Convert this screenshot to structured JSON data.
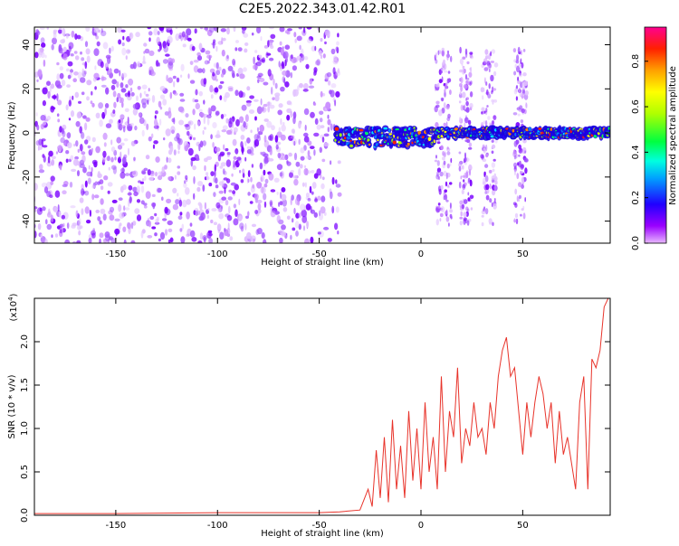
{
  "title": "C2E5.2022.343.01.42.R01",
  "chart_data": [
    {
      "type": "heatmap",
      "xlabel": "Height of straight line (km)",
      "ylabel": "Frequency (Hz)",
      "xlim": [
        -190,
        93
      ],
      "ylim": [
        -50,
        48
      ],
      "x_ticks": [
        -150,
        -100,
        -50,
        0,
        50
      ],
      "y_ticks": [
        -40,
        -20,
        0,
        20,
        40
      ],
      "colorbar": {
        "label": "Normalized spectral amplitude",
        "range": [
          0.0,
          0.95
        ],
        "ticks": [
          0.0,
          0.2,
          0.4,
          0.6,
          0.8
        ],
        "tick_labels": [
          "0.0",
          "0.2",
          "0.4",
          "0.6",
          "0.8"
        ]
      },
      "regions": [
        {
          "x": [
            -190,
            -40
          ],
          "freq": [
            -50,
            48
          ],
          "amplitude": "low",
          "pattern": "scattered"
        },
        {
          "x": [
            -42,
            7
          ],
          "freq": [
            -8,
            4
          ],
          "amplitude": "high",
          "pattern": "band"
        },
        {
          "x": [
            7,
            52
          ],
          "freq": [
            -42,
            38
          ],
          "amplitude": "low",
          "pattern": "columns"
        },
        {
          "x": [
            7,
            93
          ],
          "freq": [
            -3,
            3
          ],
          "amplitude": "high",
          "pattern": "band"
        }
      ]
    },
    {
      "type": "line",
      "xlabel": "Height of straight line (km)",
      "ylabel": "SNR (10 * v/v)",
      "y_multiplier": "(x10",
      "y_multiplier_exp": "4",
      "y_multiplier_close": ")",
      "xlim": [
        -190,
        93
      ],
      "ylim": [
        0,
        2.5
      ],
      "x_ticks": [
        -150,
        -100,
        -50,
        0,
        50
      ],
      "y_ticks": [
        0.0,
        0.5,
        1.0,
        1.5,
        2.0
      ],
      "y_tick_labels": [
        "0.0",
        "0.5",
        "1.0",
        "1.5",
        "2.0"
      ],
      "line_color": "#e8332a",
      "x": [
        -190,
        -150,
        -100,
        -50,
        -40,
        -30,
        -26,
        -24,
        -22,
        -20,
        -18,
        -16,
        -14,
        -12,
        -10,
        -8,
        -6,
        -4,
        -2,
        0,
        2,
        4,
        6,
        8,
        10,
        12,
        14,
        16,
        18,
        20,
        22,
        24,
        26,
        28,
        30,
        32,
        34,
        36,
        38,
        40,
        42,
        44,
        46,
        48,
        50,
        52,
        54,
        56,
        58,
        60,
        62,
        64,
        66,
        68,
        70,
        72,
        74,
        76,
        78,
        80,
        82,
        84,
        86,
        88,
        90,
        92
      ],
      "y": [
        0.02,
        0.02,
        0.03,
        0.03,
        0.04,
        0.06,
        0.3,
        0.1,
        0.75,
        0.2,
        0.9,
        0.15,
        1.1,
        0.3,
        0.8,
        0.2,
        1.2,
        0.4,
        1.0,
        0.3,
        1.3,
        0.5,
        0.9,
        0.3,
        1.6,
        0.5,
        1.2,
        0.9,
        1.7,
        0.6,
        1.0,
        0.8,
        1.3,
        0.9,
        1.0,
        0.7,
        1.3,
        1.0,
        1.6,
        1.9,
        2.05,
        1.6,
        1.7,
        1.2,
        0.7,
        1.3,
        0.9,
        1.3,
        1.6,
        1.4,
        1.0,
        1.3,
        0.6,
        1.2,
        0.7,
        0.9,
        0.6,
        0.3,
        1.3,
        1.6,
        0.3,
        1.8,
        1.7,
        1.9,
        2.4,
        2.5
      ]
    }
  ]
}
